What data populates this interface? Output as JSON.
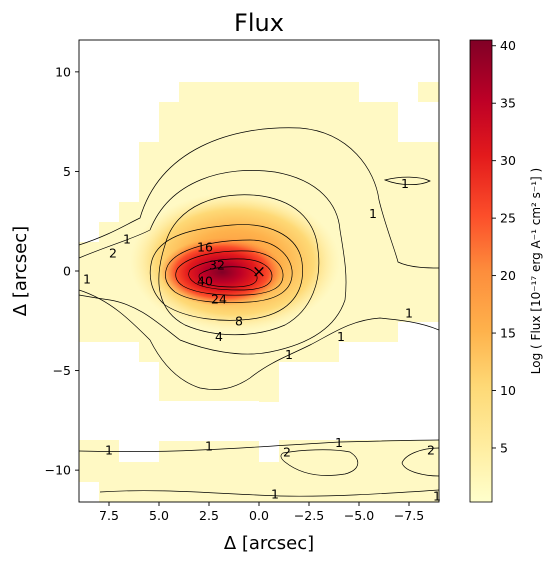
{
  "chart_data": {
    "type": "heatmap",
    "title": "Flux",
    "xlabel": "Δ  [arcsec]",
    "ylabel": "Δ  [arcsec]",
    "xlim": [
      9,
      -9
    ],
    "ylim": [
      -11.6,
      11.6
    ],
    "x_ticks": [
      7.5,
      5.0,
      2.5,
      0.0,
      -2.5,
      -5.0,
      -7.5
    ],
    "x_tick_labels": [
      "7.5",
      "5.0",
      "2.5",
      "0.0",
      "−2.5",
      "−5.0",
      "−7.5"
    ],
    "y_ticks": [
      10,
      5,
      0,
      -5,
      -10
    ],
    "y_tick_labels": [
      "10",
      "5",
      "0",
      "−5",
      "−10"
    ],
    "colormap": "YlOrRd",
    "colorbar": {
      "label": "Log ( Flux [10⁻¹⁷ erg A⁻¹ cm² s⁻¹] )",
      "range": [
        0.3,
        40.5
      ],
      "ticks": [
        5,
        10,
        15,
        20,
        25,
        30,
        35,
        40
      ],
      "tick_labels": [
        "5",
        "10",
        "15",
        "20",
        "25",
        "30",
        "35",
        "40"
      ]
    },
    "contour_levels": [
      1,
      2,
      4,
      8,
      16,
      24,
      32,
      40
    ],
    "contour_labels": [
      {
        "text": "1",
        "x": 6.6,
        "y": 1.6
      },
      {
        "text": "2",
        "x": 7.3,
        "y": 0.9
      },
      {
        "text": "1",
        "x": 8.6,
        "y": -0.4
      },
      {
        "text": "16",
        "x": 2.7,
        "y": 1.2
      },
      {
        "text": "32",
        "x": 2.1,
        "y": 0.3
      },
      {
        "text": "40",
        "x": 2.7,
        "y": -0.5
      },
      {
        "text": "24",
        "x": 2.0,
        "y": -1.4
      },
      {
        "text": "8",
        "x": 1.0,
        "y": -2.5
      },
      {
        "text": "4",
        "x": 2.0,
        "y": -3.3
      },
      {
        "text": "1",
        "x": -5.7,
        "y": 2.9
      },
      {
        "text": "1",
        "x": -7.3,
        "y": 4.4
      },
      {
        "text": "1",
        "x": -7.5,
        "y": -2.1
      },
      {
        "text": "1",
        "x": -4.1,
        "y": -3.3
      },
      {
        "text": "1",
        "x": -1.5,
        "y": -4.2
      },
      {
        "text": "1",
        "x": 7.5,
        "y": -9.0
      },
      {
        "text": "1",
        "x": 2.5,
        "y": -8.8
      },
      {
        "text": "1",
        "x": -4.0,
        "y": -8.6
      },
      {
        "text": "2",
        "x": -1.4,
        "y": -9.1
      },
      {
        "text": "2",
        "x": -8.6,
        "y": -9.0
      },
      {
        "text": "1",
        "x": -0.8,
        "y": -11.2
      },
      {
        "text": "1",
        "x": -8.9,
        "y": -11.3
      }
    ],
    "peak_marker": {
      "symbol": "×",
      "x": 0.0,
      "y": 0.0
    }
  }
}
